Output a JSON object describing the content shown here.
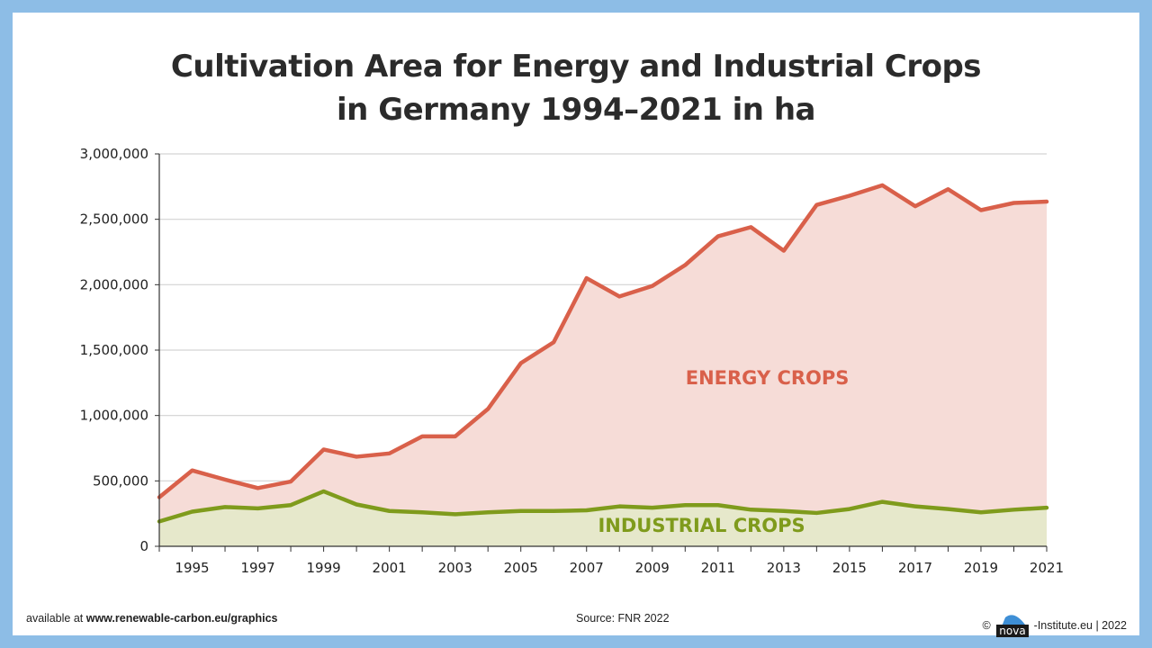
{
  "chart_data": {
    "type": "area",
    "title_lines": [
      "Cultivation Area for Energy and Industrial Crops",
      "in Germany 1994–2021 in ha"
    ],
    "x": [
      1994,
      1995,
      1996,
      1997,
      1998,
      1999,
      2000,
      2001,
      2002,
      2003,
      2004,
      2005,
      2006,
      2007,
      2008,
      2009,
      2010,
      2011,
      2012,
      2013,
      2014,
      2015,
      2016,
      2017,
      2018,
      2019,
      2020,
      2021
    ],
    "x_tick_labels": [
      "1995",
      "1997",
      "1999",
      "2001",
      "2003",
      "2005",
      "2007",
      "2009",
      "2011",
      "2013",
      "2015",
      "2017",
      "2019",
      "2021"
    ],
    "y_ticks": [
      0,
      500000,
      1000000,
      1500000,
      2000000,
      2500000,
      3000000
    ],
    "y_tick_labels": [
      "0",
      "500,000",
      "1,000,000",
      "1,500,000",
      "2,000,000",
      "2,500,000",
      "3,000,000"
    ],
    "ylim": [
      0,
      3000000
    ],
    "xlim": [
      1994,
      2021
    ],
    "grid": true,
    "series": [
      {
        "name": "ENERGY CROPS",
        "line_color": "#d9604a",
        "fill_color": "#f6dcd7",
        "label_color": "#d9604a",
        "values": [
          375000,
          580000,
          510000,
          445000,
          495000,
          740000,
          685000,
          710000,
          840000,
          840000,
          1050000,
          1400000,
          1560000,
          2050000,
          1910000,
          1990000,
          2150000,
          2370000,
          2440000,
          2260000,
          2610000,
          2680000,
          2760000,
          2600000,
          2730000,
          2570000,
          2625000,
          2635000
        ]
      },
      {
        "name": "INDUSTRIAL CROPS",
        "line_color": "#7f9b1c",
        "fill_color": "#e6e8cb",
        "label_color": "#7f9b1c",
        "values": [
          190000,
          265000,
          300000,
          290000,
          315000,
          420000,
          320000,
          270000,
          260000,
          245000,
          260000,
          270000,
          270000,
          275000,
          305000,
          295000,
          315000,
          315000,
          280000,
          270000,
          255000,
          285000,
          340000,
          305000,
          285000,
          260000,
          280000,
          295000
        ]
      }
    ]
  },
  "footer": {
    "left_prefix": "available at ",
    "left_url": "www.renewable-carbon.eu/graphics",
    "source": "Source: FNR 2022",
    "copyright_symbol": "©",
    "logo_text": "nova",
    "right_suffix": "-Institute.eu | 2022"
  },
  "colors": {
    "frame": "#8dbde6",
    "grid": "#d3d3d3",
    "axis": "#333333"
  }
}
